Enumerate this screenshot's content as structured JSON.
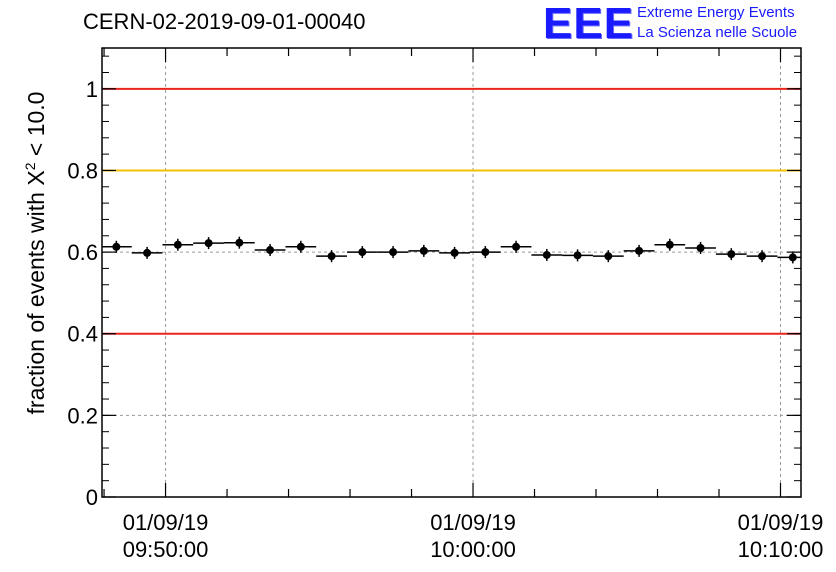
{
  "header": {
    "run_id": "CERN-02-2019-09-01-00040",
    "logo_text": "EEE",
    "logo_line1": "Extreme Energy Events",
    "logo_line2": "La Scienza nelle Scuole"
  },
  "colors": {
    "reference_red": "#e8261c",
    "reference_yellow": "#f5c000",
    "logo_blue": "#1a1aff",
    "grid": "#9a9a9a",
    "marker": "#000000"
  },
  "chart_data": {
    "type": "scatter",
    "title": "CERN-02-2019-09-01-00040",
    "ylabel": "fraction of events with",
    "ylabel_symbol": "X",
    "ylabel_exp": "2",
    "ylabel_tail": "< 10.0",
    "ylim": [
      0,
      1.1
    ],
    "yticks": [
      0,
      0.2,
      0.4,
      0.6,
      0.8,
      1
    ],
    "ytick_labels": [
      "0",
      "0.2",
      "0.4",
      "0.6",
      "0.8",
      "1"
    ],
    "xlim": [
      "2019-09-01 09:47:56",
      "2019-09-01 10:10:40"
    ],
    "xticks": [
      {
        "time": "2019-09-01 09:50:00",
        "label_date": "01/09/19",
        "label_time": "09:50:00"
      },
      {
        "time": "2019-09-01 10:00:00",
        "label_date": "01/09/19",
        "label_time": "10:00:00"
      },
      {
        "time": "2019-09-01 10:10:00",
        "label_date": "01/09/19",
        "label_time": "10:10:00"
      }
    ],
    "grid": true,
    "reference_lines": [
      {
        "y": 1.0,
        "color": "red"
      },
      {
        "y": 0.8,
        "color": "yellow"
      },
      {
        "y": 0.4,
        "color": "red"
      }
    ],
    "bin_width_seconds": 60,
    "points": [
      {
        "x": "2019-09-01 09:48:24",
        "y": 0.613
      },
      {
        "x": "2019-09-01 09:49:24",
        "y": 0.598
      },
      {
        "x": "2019-09-01 09:50:24",
        "y": 0.618
      },
      {
        "x": "2019-09-01 09:51:24",
        "y": 0.622
      },
      {
        "x": "2019-09-01 09:52:24",
        "y": 0.623
      },
      {
        "x": "2019-09-01 09:53:24",
        "y": 0.605
      },
      {
        "x": "2019-09-01 09:54:24",
        "y": 0.613
      },
      {
        "x": "2019-09-01 09:55:24",
        "y": 0.59
      },
      {
        "x": "2019-09-01 09:56:24",
        "y": 0.6
      },
      {
        "x": "2019-09-01 09:57:24",
        "y": 0.6
      },
      {
        "x": "2019-09-01 09:58:24",
        "y": 0.603
      },
      {
        "x": "2019-09-01 09:59:24",
        "y": 0.598
      },
      {
        "x": "2019-09-01 10:00:24",
        "y": 0.6
      },
      {
        "x": "2019-09-01 10:01:24",
        "y": 0.613
      },
      {
        "x": "2019-09-01 10:02:24",
        "y": 0.593
      },
      {
        "x": "2019-09-01 10:03:24",
        "y": 0.592
      },
      {
        "x": "2019-09-01 10:04:24",
        "y": 0.59
      },
      {
        "x": "2019-09-01 10:05:24",
        "y": 0.603
      },
      {
        "x": "2019-09-01 10:06:24",
        "y": 0.618
      },
      {
        "x": "2019-09-01 10:07:24",
        "y": 0.61
      },
      {
        "x": "2019-09-01 10:08:24",
        "y": 0.595
      },
      {
        "x": "2019-09-01 10:09:24",
        "y": 0.59
      },
      {
        "x": "2019-09-01 10:10:24",
        "y": 0.587
      }
    ]
  }
}
